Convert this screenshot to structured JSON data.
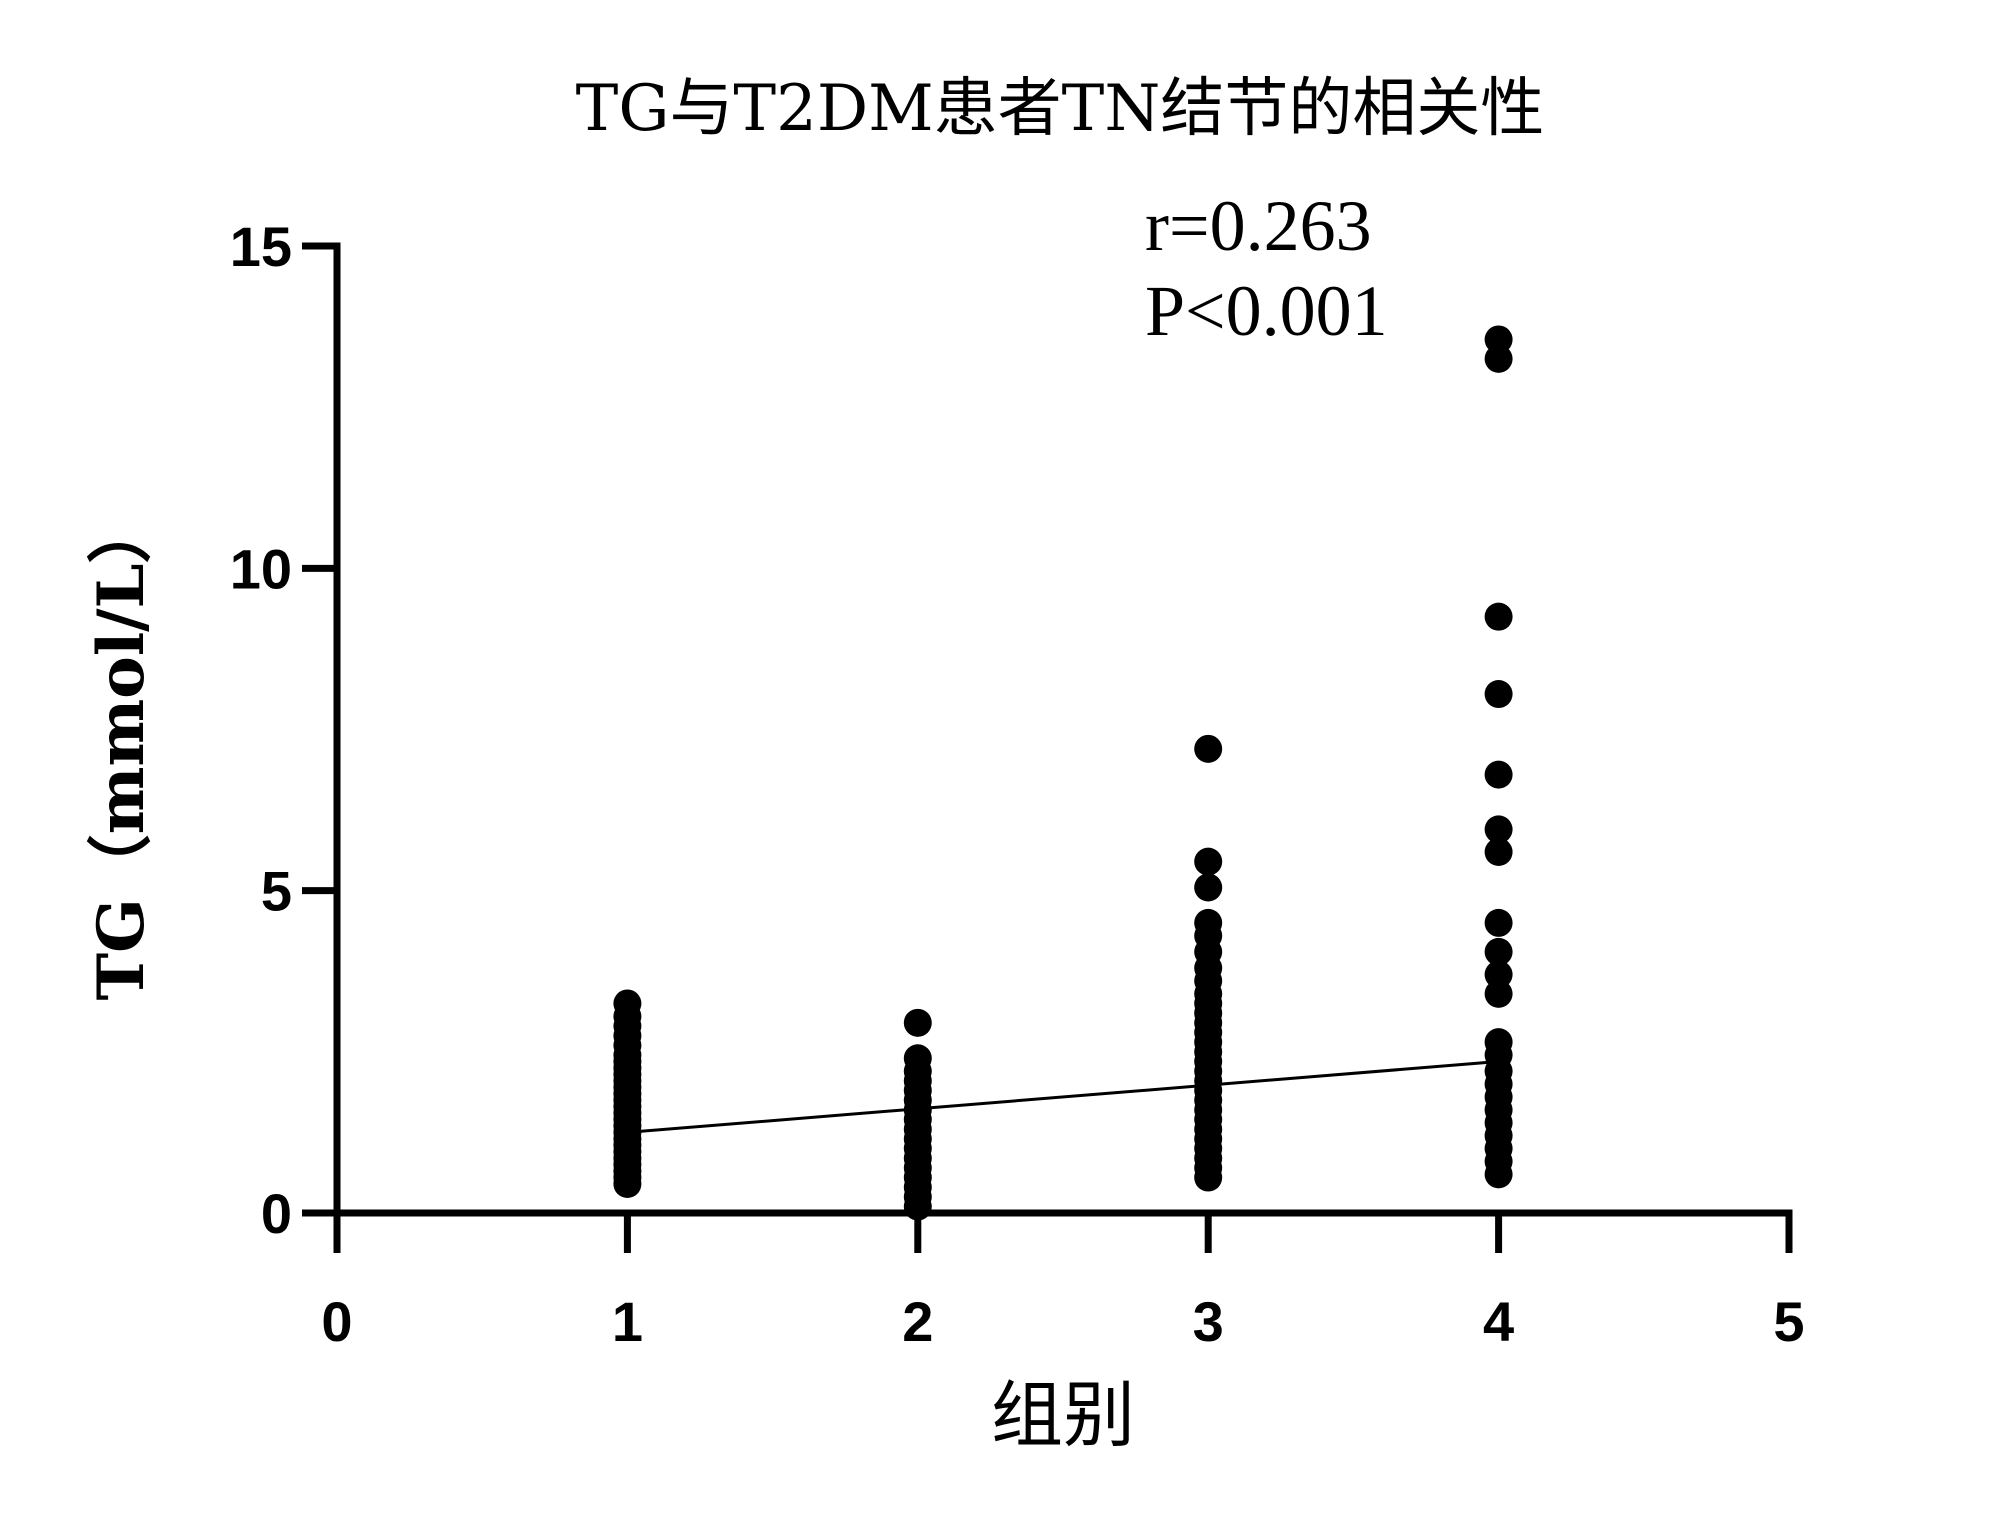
{
  "chart_data": {
    "type": "scatter",
    "title": "TG与T2DM患者TN结节的相关性",
    "xlabel": "组别",
    "ylabel": "TG（mmol/L）",
    "xlim": [
      0,
      5
    ],
    "ylim": [
      0,
      15
    ],
    "xticks": [
      "0",
      "1",
      "2",
      "3",
      "4",
      "5"
    ],
    "yticks": [
      "0",
      "5",
      "10",
      "15"
    ],
    "grid": false,
    "annotations": [
      "r=0.263",
      "P<0.001"
    ],
    "regression_line": {
      "x": [
        1,
        4
      ],
      "y": [
        1.25,
        2.35
      ]
    },
    "points": [
      {
        "x": 1,
        "y": 0.45
      },
      {
        "x": 1,
        "y": 0.55
      },
      {
        "x": 1,
        "y": 0.65
      },
      {
        "x": 1,
        "y": 0.75
      },
      {
        "x": 1,
        "y": 0.85
      },
      {
        "x": 1,
        "y": 0.95
      },
      {
        "x": 1,
        "y": 1.05
      },
      {
        "x": 1,
        "y": 1.15
      },
      {
        "x": 1,
        "y": 1.25
      },
      {
        "x": 1,
        "y": 1.35
      },
      {
        "x": 1,
        "y": 1.45
      },
      {
        "x": 1,
        "y": 1.55
      },
      {
        "x": 1,
        "y": 1.65
      },
      {
        "x": 1,
        "y": 1.75
      },
      {
        "x": 1,
        "y": 1.85
      },
      {
        "x": 1,
        "y": 1.95
      },
      {
        "x": 1,
        "y": 2.05
      },
      {
        "x": 1,
        "y": 2.15
      },
      {
        "x": 1,
        "y": 2.25
      },
      {
        "x": 1,
        "y": 2.35
      },
      {
        "x": 1,
        "y": 2.45
      },
      {
        "x": 1,
        "y": 2.6
      },
      {
        "x": 1,
        "y": 2.75
      },
      {
        "x": 1,
        "y": 2.9
      },
      {
        "x": 1,
        "y": 3.05
      },
      {
        "x": 1,
        "y": 3.25
      },
      {
        "x": 2,
        "y": 0.1
      },
      {
        "x": 2,
        "y": 0.25
      },
      {
        "x": 2,
        "y": 0.4
      },
      {
        "x": 2,
        "y": 0.55
      },
      {
        "x": 2,
        "y": 0.7
      },
      {
        "x": 2,
        "y": 0.85
      },
      {
        "x": 2,
        "y": 1.0
      },
      {
        "x": 2,
        "y": 1.15
      },
      {
        "x": 2,
        "y": 1.3
      },
      {
        "x": 2,
        "y": 1.45
      },
      {
        "x": 2,
        "y": 1.6
      },
      {
        "x": 2,
        "y": 1.75
      },
      {
        "x": 2,
        "y": 1.9
      },
      {
        "x": 2,
        "y": 2.05
      },
      {
        "x": 2,
        "y": 2.2
      },
      {
        "x": 2,
        "y": 2.4
      },
      {
        "x": 2,
        "y": 2.95
      },
      {
        "x": 3,
        "y": 0.55
      },
      {
        "x": 3,
        "y": 0.7
      },
      {
        "x": 3,
        "y": 0.85
      },
      {
        "x": 3,
        "y": 1.0
      },
      {
        "x": 3,
        "y": 1.15
      },
      {
        "x": 3,
        "y": 1.3
      },
      {
        "x": 3,
        "y": 1.45
      },
      {
        "x": 3,
        "y": 1.6
      },
      {
        "x": 3,
        "y": 1.75
      },
      {
        "x": 3,
        "y": 1.9
      },
      {
        "x": 3,
        "y": 2.05
      },
      {
        "x": 3,
        "y": 2.2
      },
      {
        "x": 3,
        "y": 2.35
      },
      {
        "x": 3,
        "y": 2.5
      },
      {
        "x": 3,
        "y": 2.65
      },
      {
        "x": 3,
        "y": 2.8
      },
      {
        "x": 3,
        "y": 2.95
      },
      {
        "x": 3,
        "y": 3.1
      },
      {
        "x": 3,
        "y": 3.25
      },
      {
        "x": 3,
        "y": 3.4
      },
      {
        "x": 3,
        "y": 3.6
      },
      {
        "x": 3,
        "y": 3.8
      },
      {
        "x": 3,
        "y": 4.05
      },
      {
        "x": 3,
        "y": 4.3
      },
      {
        "x": 3,
        "y": 4.5
      },
      {
        "x": 3,
        "y": 5.05
      },
      {
        "x": 3,
        "y": 5.45
      },
      {
        "x": 3,
        "y": 7.2
      },
      {
        "x": 4,
        "y": 0.6
      },
      {
        "x": 4,
        "y": 0.8
      },
      {
        "x": 4,
        "y": 1.0
      },
      {
        "x": 4,
        "y": 1.2
      },
      {
        "x": 4,
        "y": 1.4
      },
      {
        "x": 4,
        "y": 1.6
      },
      {
        "x": 4,
        "y": 1.8
      },
      {
        "x": 4,
        "y": 2.0
      },
      {
        "x": 4,
        "y": 2.2
      },
      {
        "x": 4,
        "y": 2.45
      },
      {
        "x": 4,
        "y": 2.65
      },
      {
        "x": 4,
        "y": 3.4
      },
      {
        "x": 4,
        "y": 3.7
      },
      {
        "x": 4,
        "y": 4.05
      },
      {
        "x": 4,
        "y": 4.5
      },
      {
        "x": 4,
        "y": 5.6
      },
      {
        "x": 4,
        "y": 5.95
      },
      {
        "x": 4,
        "y": 6.8
      },
      {
        "x": 4,
        "y": 8.05
      },
      {
        "x": 4,
        "y": 9.25
      },
      {
        "x": 4,
        "y": 13.25
      },
      {
        "x": 4,
        "y": 13.55
      }
    ],
    "marker_color": "#000000",
    "line_color": "#000000"
  }
}
